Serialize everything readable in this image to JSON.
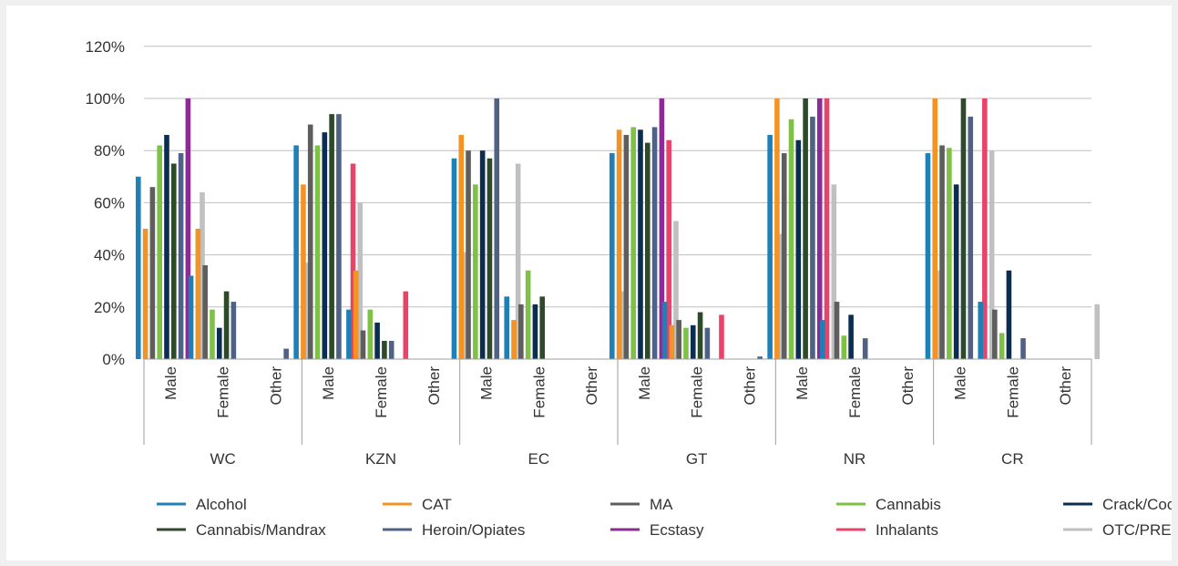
{
  "chart_data": {
    "type": "bar",
    "title": "",
    "xlabel": "",
    "ylabel": "",
    "ylim": [
      0,
      120
    ],
    "y_ticks": [
      "0%",
      "20%",
      "40%",
      "60%",
      "80%",
      "100%",
      "120%"
    ],
    "grid": true,
    "legend_position": "bottom",
    "regions": [
      "WC",
      "KZN",
      "EC",
      "GT",
      "NR",
      "CR"
    ],
    "genders": [
      "Male",
      "Female",
      "Other"
    ],
    "series": [
      {
        "name": "Alcohol",
        "color": "#1f80b8",
        "values": [
          [
            70,
            32,
            0
          ],
          [
            82,
            19,
            0
          ],
          [
            77,
            24,
            0
          ],
          [
            79,
            22,
            0
          ],
          [
            86,
            15,
            0
          ],
          [
            79,
            22,
            0
          ]
        ]
      },
      {
        "name": "CAT",
        "color": "#f39325",
        "values": [
          [
            50,
            50,
            0
          ],
          [
            67,
            34,
            0
          ],
          [
            86,
            15,
            0
          ],
          [
            88,
            13,
            0
          ],
          [
            100,
            0,
            0
          ],
          [
            100,
            0,
            0
          ]
        ]
      },
      {
        "name": "MA",
        "color": "#5e5e5e",
        "values": [
          [
            66,
            36,
            0
          ],
          [
            90,
            11,
            0
          ],
          [
            80,
            21,
            0
          ],
          [
            86,
            15,
            0
          ],
          [
            79,
            22,
            0
          ],
          [
            82,
            19,
            0
          ]
        ]
      },
      {
        "name": "Cannabis",
        "color": "#7ec146",
        "values": [
          [
            82,
            19,
            0
          ],
          [
            82,
            19,
            0
          ],
          [
            67,
            34,
            0
          ],
          [
            89,
            12,
            0
          ],
          [
            92,
            9,
            0
          ],
          [
            81,
            10,
            0
          ]
        ]
      },
      {
        "name": "Crack/Cocaine",
        "color": "#0c2d52",
        "values": [
          [
            86,
            12,
            0
          ],
          [
            87,
            14,
            0
          ],
          [
            80,
            21,
            0
          ],
          [
            88,
            13,
            0
          ],
          [
            84,
            17,
            0
          ],
          [
            67,
            34,
            0
          ]
        ]
      },
      {
        "name": "Cannabis/Mandrax",
        "color": "#2e4a2b",
        "values": [
          [
            75,
            26,
            0
          ],
          [
            94,
            7,
            0
          ],
          [
            77,
            24,
            0
          ],
          [
            83,
            18,
            0
          ],
          [
            100,
            0,
            0
          ],
          [
            100,
            0,
            0
          ]
        ]
      },
      {
        "name": "Heroin/Opiates",
        "color": "#4f6286",
        "values": [
          [
            79,
            22,
            4
          ],
          [
            94,
            7,
            0
          ],
          [
            100,
            0,
            0
          ],
          [
            89,
            12,
            1
          ],
          [
            93,
            8,
            0
          ],
          [
            93,
            8,
            0
          ]
        ]
      },
      {
        "name": "Ecstasy",
        "color": "#8c2b94",
        "values": [
          [
            100,
            0,
            0
          ],
          [
            0,
            0,
            0
          ],
          [
            0,
            0,
            0
          ],
          [
            100,
            0,
            0
          ],
          [
            100,
            0,
            0
          ],
          [
            0,
            0,
            0
          ]
        ]
      },
      {
        "name": "Inhalants",
        "color": "#e8446a",
        "values": [
          [
            0,
            0,
            0
          ],
          [
            75,
            26,
            0
          ],
          [
            0,
            0,
            0
          ],
          [
            84,
            17,
            0
          ],
          [
            100,
            0,
            0
          ],
          [
            100,
            0,
            0
          ]
        ]
      },
      {
        "name": "OTC/PRE",
        "color": "#c0c0c0",
        "values": [
          [
            64,
            0,
            37
          ],
          [
            60,
            0,
            41
          ],
          [
            75,
            0,
            26
          ],
          [
            53,
            0,
            48
          ],
          [
            67,
            0,
            34
          ],
          [
            80,
            0,
            21
          ]
        ]
      }
    ]
  }
}
